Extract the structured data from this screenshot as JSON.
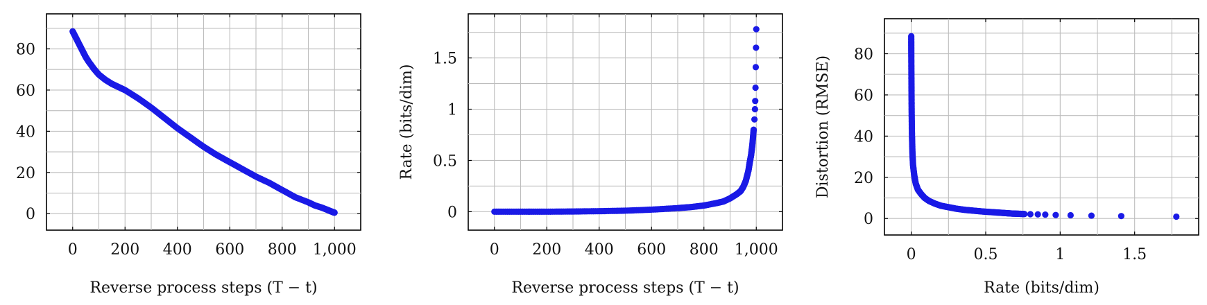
{
  "chart_data": [
    {
      "type": "scatter",
      "xlabel": "Reverse process steps (T − t)",
      "ylabel": "",
      "xlim": [
        -100,
        1100
      ],
      "ylim": [
        -8,
        97
      ],
      "xticks": [
        0,
        200,
        400,
        600,
        800,
        1000
      ],
      "xtick_labels": [
        "0",
        "200",
        "400",
        "600",
        "800",
        "1,000"
      ],
      "yticks": [
        0,
        20,
        40,
        60,
        80
      ],
      "ytick_labels": [
        "0",
        "20",
        "40",
        "60",
        "80"
      ],
      "grid": true,
      "color": "#1a1ae6",
      "series": [
        {
          "x": [
            0,
            10,
            20,
            30,
            40,
            50,
            60,
            80,
            100,
            125,
            150,
            175,
            200,
            250,
            300,
            350,
            400,
            450,
            500,
            550,
            600,
            650,
            700,
            750,
            800,
            850,
            900,
            925,
            950,
            970,
            985,
            995,
            1000
          ],
          "values": [
            88.5,
            86,
            83.5,
            81,
            78.5,
            76,
            74,
            70.5,
            67.5,
            65,
            63,
            61.5,
            60,
            56,
            51.5,
            46.5,
            41.5,
            37,
            32.5,
            28.5,
            25,
            21.5,
            18,
            15,
            11.5,
            8,
            5.5,
            4,
            3,
            2,
            1.2,
            0.7,
            0.5
          ]
        }
      ]
    },
    {
      "type": "scatter",
      "xlabel": "Reverse process steps (T − t)",
      "ylabel": "Rate (bits/dim)",
      "xlim": [
        -100,
        1100
      ],
      "ylim": [
        -0.18,
        1.93
      ],
      "xticks": [
        0,
        200,
        400,
        600,
        800,
        1000
      ],
      "xtick_labels": [
        "0",
        "200",
        "400",
        "600",
        "800",
        "1,000"
      ],
      "yticks": [
        0,
        0.5,
        1,
        1.5
      ],
      "ytick_labels": [
        "0",
        "0.5",
        "1",
        "1.5"
      ],
      "grid": true,
      "color": "#1a1ae6",
      "series": [
        {
          "x": [
            0,
            100,
            200,
            300,
            400,
            500,
            600,
            700,
            750,
            800,
            850,
            875,
            900,
            925,
            940,
            950,
            960,
            970,
            975,
            980,
            985,
            990,
            993,
            995,
            996,
            997,
            998,
            999,
            1000
          ],
          "values": [
            0,
            0,
            0,
            0.002,
            0.005,
            0.01,
            0.02,
            0.035,
            0.045,
            0.06,
            0.085,
            0.1,
            0.13,
            0.17,
            0.2,
            0.24,
            0.3,
            0.4,
            0.48,
            0.55,
            0.65,
            0.8,
            0.9,
            1.0,
            1.08,
            1.21,
            1.41,
            1.6,
            1.78
          ]
        }
      ]
    },
    {
      "type": "scatter",
      "xlabel": "Rate (bits/dim)",
      "ylabel": "Distortion (RMSE)",
      "xlim": [
        -0.18,
        1.93
      ],
      "ylim": [
        -8,
        97
      ],
      "xticks": [
        0,
        0.5,
        1,
        1.5
      ],
      "xtick_labels": [
        "0",
        "0.5",
        "1",
        "1.5"
      ],
      "yticks": [
        0,
        20,
        40,
        60,
        80
      ],
      "ytick_labels": [
        "0",
        "20",
        "40",
        "60",
        "80"
      ],
      "grid": true,
      "color": "#1a1ae6",
      "series": [
        {
          "x": [
            0,
            0.0003,
            0.001,
            0.002,
            0.003,
            0.005,
            0.008,
            0.012,
            0.02,
            0.03,
            0.045,
            0.065,
            0.09,
            0.12,
            0.16,
            0.2,
            0.25,
            0.3,
            0.36,
            0.42,
            0.48,
            0.54,
            0.6,
            0.64,
            0.68,
            0.72,
            0.76,
            0.8,
            0.85,
            0.9,
            0.97,
            1.07,
            1.21,
            1.41,
            1.78
          ],
          "values": [
            88.5,
            80,
            70,
            60,
            50,
            40,
            32,
            26,
            21,
            17,
            14,
            12,
            10,
            8.5,
            7.2,
            6.2,
            5.5,
            4.8,
            4.2,
            3.8,
            3.4,
            3.1,
            2.8,
            2.6,
            2.4,
            2.3,
            2.2,
            2.1,
            2.0,
            1.9,
            1.7,
            1.6,
            1.4,
            1.2,
            0.9
          ]
        }
      ]
    }
  ]
}
